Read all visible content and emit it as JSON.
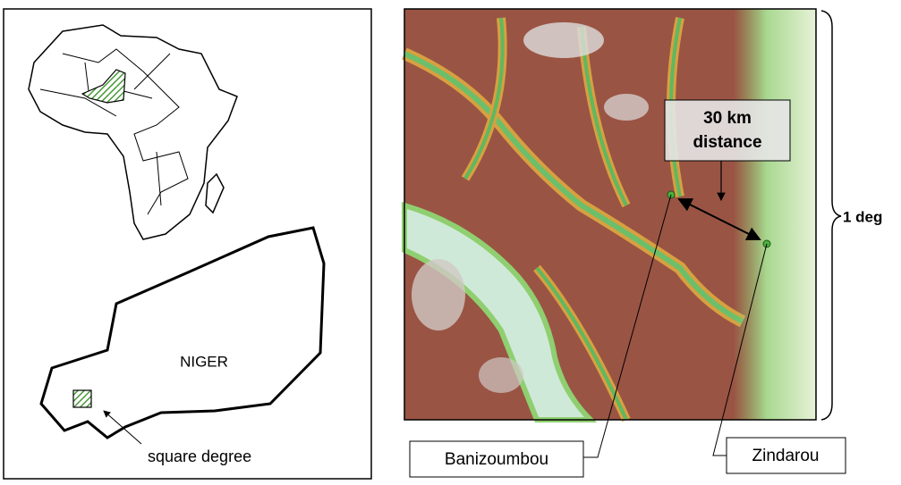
{
  "left_panel": {
    "country_label": "NIGER",
    "callout": "square degree"
  },
  "right_panel": {
    "distance_label": [
      "30 km",
      "distance"
    ],
    "scale_label": "1 deg",
    "sites": [
      "Banizoumbou",
      "Zindarou"
    ]
  }
}
